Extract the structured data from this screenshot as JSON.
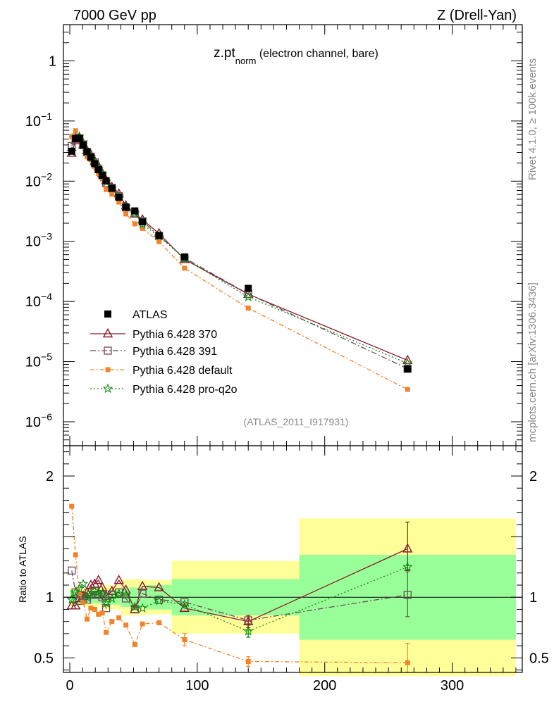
{
  "header": {
    "left": "7000 GeV pp",
    "right": "Z (Drell-Yan)"
  },
  "plot_title": {
    "main": "z.pt",
    "subscript": "norm",
    "suffix": " (electron channel, bare)"
  },
  "side_text": {
    "rivet": "Rivet 4.1.0, ≥ 100k events",
    "site": "mcplots.cern.ch [arXiv:1306.3436]"
  },
  "analysis_id": "(ATLAS_2011_I917931)",
  "ratio_ylabel": "Ratio to ATLAS",
  "colors": {
    "atlas": "#000000",
    "p370": "#8b1a2b",
    "p391": "#6b4a5a",
    "default": "#f4822a",
    "q2o": "#0f8a0f",
    "band_inner": "#99ff99",
    "band_outer": "#ffff99"
  },
  "chart_data": {
    "type": "line",
    "x_axis": {
      "range": [
        -5,
        355
      ],
      "ticks": [
        0,
        100,
        200,
        300
      ],
      "tick_labels": [
        "0",
        "100",
        "200",
        "300"
      ]
    },
    "main_y_axis": {
      "scale": "log",
      "range": [
        4e-07,
        4
      ],
      "ticks": [
        1e-06,
        1e-05,
        0.0001,
        0.001,
        0.01,
        0.1,
        1
      ],
      "tick_labels": [
        {
          "base": "10",
          "exp": "−6"
        },
        {
          "base": "10",
          "exp": "−5"
        },
        {
          "base": "10",
          "exp": "−4"
        },
        {
          "base": "10",
          "exp": "−3"
        },
        {
          "base": "10",
          "exp": "−2"
        },
        {
          "base": "10",
          "exp": "−1"
        },
        {
          "base": "1",
          "exp": ""
        }
      ]
    },
    "ratio_y_axis": {
      "range": [
        0.38,
        2.25
      ],
      "ticks": [
        0.5,
        1,
        2
      ],
      "tick_labels": [
        "0.5",
        "1",
        "2"
      ]
    },
    "x": [
      1.5,
      4.5,
      7.5,
      10.5,
      13.5,
      16.5,
      19.5,
      22.5,
      25.5,
      28.5,
      33,
      38.5,
      44,
      51,
      57,
      70,
      90,
      140,
      265
    ],
    "series": [
      {
        "key": "atlas",
        "name": "ATLAS",
        "marker": "square",
        "values": [
          0.0315,
          0.051,
          0.052,
          0.04,
          0.031,
          0.025,
          0.0195,
          0.0155,
          0.0125,
          0.0102,
          0.0076,
          0.0054,
          0.0037,
          0.0032,
          0.0021,
          0.00125,
          0.00055,
          0.000165,
          7.5e-06
        ]
      },
      {
        "key": "p370",
        "name": "Pythia 6.428 370",
        "marker": "triangle",
        "dash": "",
        "ratio": [
          0.93,
          0.93,
          0.99,
          1.01,
          1.04,
          1.1,
          1.11,
          1.14,
          1.08,
          1.01,
          1.05,
          1.14,
          1.06,
          0.9,
          1.09,
          1.08,
          0.91,
          0.8,
          1.4
        ]
      },
      {
        "key": "p391",
        "name": "Pythia 6.428 391",
        "marker": "open-square",
        "dash": "8,3,2,3",
        "ratio": [
          1.22,
          1.04,
          0.97,
          0.99,
          0.98,
          1.02,
          1.05,
          1.02,
          1.0,
          0.91,
          1.02,
          1.04,
          0.99,
          0.9,
          1.03,
          0.98,
          0.96,
          0.81,
          1.02
        ]
      },
      {
        "key": "default",
        "name": "Pythia 6.428 default",
        "marker": "small-square",
        "dash": "6,3,2,3",
        "ratio": [
          1.75,
          1.35,
          1.03,
          0.96,
          0.82,
          0.91,
          0.9,
          0.86,
          0.87,
          0.71,
          0.8,
          0.83,
          0.77,
          0.61,
          0.78,
          0.79,
          0.65,
          0.47,
          0.46
        ]
      },
      {
        "key": "q2o",
        "name": "Pythia 6.428 pro-q2o",
        "marker": "star",
        "dash": "2,3",
        "ratio": [
          0.98,
          1.04,
          1.07,
          1.11,
          1.0,
          1.02,
          1.05,
          1.04,
          1.03,
          0.95,
          0.99,
          1.03,
          1.02,
          0.92,
          0.91,
          0.97,
          0.94,
          0.72,
          1.25
        ]
      }
    ],
    "ratio_error_bars": [
      {
        "series": "p370",
        "x": 265,
        "lo": 1.22,
        "hi": 1.62
      },
      {
        "series": "p391",
        "x": 265,
        "lo": 0.84,
        "hi": 1.21
      },
      {
        "series": "default",
        "x": 265,
        "lo": 0.38,
        "hi": 0.62
      },
      {
        "series": "default",
        "x": 140,
        "lo": 0.43,
        "hi": 0.51
      },
      {
        "series": "q2o",
        "x": 140,
        "lo": 0.67,
        "hi": 0.77
      },
      {
        "series": "p370",
        "x": 140,
        "lo": 0.75,
        "hi": 0.85
      },
      {
        "series": "default",
        "x": 90,
        "lo": 0.6,
        "hi": 0.7
      }
    ],
    "uncertainty_bands": [
      {
        "x0": 0,
        "x1": 3,
        "inner": 0.06,
        "outer": 0.08
      },
      {
        "x0": 3,
        "x1": 12,
        "inner": 0.05,
        "outer": 0.07
      },
      {
        "x0": 12,
        "x1": 24,
        "inner": 0.05,
        "outer": 0.08
      },
      {
        "x0": 24,
        "x1": 40,
        "inner": 0.06,
        "outer": 0.1
      },
      {
        "x0": 40,
        "x1": 60,
        "inner": 0.08,
        "outer": 0.15
      },
      {
        "x0": 60,
        "x1": 80,
        "inner": 0.1,
        "outer": 0.14
      },
      {
        "x0": 80,
        "x1": 180,
        "inner": 0.15,
        "outer": 0.3
      },
      {
        "x0": 180,
        "x1": 350,
        "inner": 0.35,
        "outer": 0.65
      }
    ]
  }
}
